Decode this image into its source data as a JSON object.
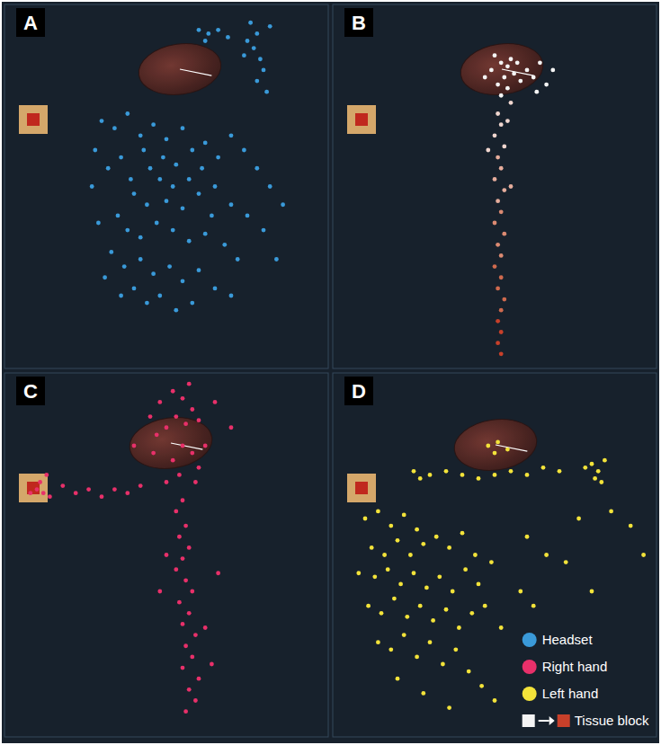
{
  "chart_data": [
    {
      "type": "scatter",
      "title": "A",
      "xlim": [
        0,
        100
      ],
      "ylim": [
        0,
        100
      ],
      "tick_labels": false,
      "x": [
        76,
        78,
        77,
        79,
        80,
        78,
        81,
        75,
        82,
        74,
        60,
        63,
        66,
        69,
        62,
        30,
        34,
        28,
        36,
        32,
        38,
        42,
        46,
        50,
        55,
        58,
        62,
        66,
        70,
        74,
        78,
        82,
        45,
        48,
        52,
        40,
        44,
        50,
        55,
        60,
        65,
        70,
        75,
        80,
        35,
        38,
        42,
        47,
        52,
        57,
        62,
        68,
        72,
        33,
        37,
        42,
        46,
        51,
        55,
        60,
        65,
        70,
        40,
        44,
        48,
        53,
        58,
        36,
        31,
        29,
        27,
        84,
        86,
        64,
        49,
        53,
        43,
        57,
        61,
        39
      ],
      "series": [
        {
          "name": "Headset",
          "color": "#3a9ad9",
          "marker": "circle",
          "values": [
            95,
            92,
            88,
            85,
            82,
            79,
            76,
            90,
            94,
            86,
            93,
            92,
            93,
            91,
            90,
            68,
            66,
            60,
            58,
            55,
            70,
            64,
            67,
            63,
            66,
            60,
            62,
            58,
            64,
            60,
            55,
            50,
            55,
            52,
            50,
            48,
            45,
            46,
            44,
            48,
            50,
            45,
            42,
            38,
            42,
            38,
            36,
            40,
            38,
            35,
            37,
            34,
            30,
            32,
            28,
            30,
            26,
            28,
            24,
            27,
            22,
            20,
            22,
            18,
            20,
            16,
            18,
            20,
            25,
            40,
            50,
            30,
            45,
            42,
            58,
            56,
            60,
            52,
            55,
            52
          ]
        }
      ]
    },
    {
      "type": "scatter",
      "title": "B",
      "xlim": [
        0,
        100
      ],
      "ylim": [
        0,
        100
      ],
      "tick_labels": false,
      "x": [
        50,
        52,
        54,
        55,
        53,
        51,
        56,
        57,
        49,
        54,
        52,
        55,
        58,
        60,
        62,
        64,
        66,
        68,
        63,
        47,
        54,
        48,
        55,
        51,
        52,
        50,
        53,
        51,
        52,
        50,
        53,
        51,
        52,
        50,
        53,
        51,
        52,
        50,
        52,
        51,
        53,
        52,
        51,
        52,
        51,
        52
      ],
      "series": [
        {
          "name": "Tissue block",
          "marker": "circle",
          "values": [
            86,
            84,
            83,
            85,
            80,
            78,
            81,
            84,
            82,
            77,
            75,
            73,
            79,
            82,
            80,
            84,
            78,
            82,
            76,
            80,
            68,
            60,
            50,
            70,
            67,
            64,
            61,
            58,
            55,
            52,
            49,
            46,
            43,
            40,
            37,
            34,
            31,
            28,
            25,
            22,
            19,
            16,
            13,
            10,
            7,
            4
          ],
          "colors": [
            "#f4f4f4",
            "#f4f4f4",
            "#f4f4f4",
            "#f4f4f4",
            "#f4f4f4",
            "#f4f4f4",
            "#f4f4f4",
            "#f4f4f4",
            "#f4f4f4",
            "#f4f4f4",
            "#f4f4f4",
            "#f0d6cf",
            "#f4f4f4",
            "#f4f4f4",
            "#f4f4f4",
            "#f4f4f4",
            "#f4f4f4",
            "#f4f4f4",
            "#f4f4f4",
            "#f4f4f4",
            "#f0d6cf",
            "#f0d6cf",
            "#e6ad9c",
            "#f0d6cf",
            "#f0d6cf",
            "#f0d6cf",
            "#f0d6cf",
            "#e6ad9c",
            "#e6ad9c",
            "#e6ad9c",
            "#e6ad9c",
            "#e6ad9c",
            "#db8a72",
            "#db8a72",
            "#db8a72",
            "#db8a72",
            "#db8a72",
            "#cf6a4e",
            "#cf6a4e",
            "#cf6a4e",
            "#cf6a4e",
            "#cf6a4e",
            "#c8402a",
            "#c8402a",
            "#c8402a",
            "#c8402a"
          ]
        }
      ]
    },
    {
      "type": "scatter",
      "title": "C",
      "xlim": [
        0,
        100
      ],
      "ylim": [
        0,
        100
      ],
      "tick_labels": false,
      "x": [
        48,
        52,
        55,
        58,
        60,
        56,
        53,
        50,
        47,
        55,
        58,
        52,
        60,
        62,
        45,
        57,
        54,
        50,
        59,
        46,
        10,
        12,
        11,
        14,
        18,
        22,
        26,
        30,
        34,
        38,
        42,
        8,
        13,
        55,
        53,
        56,
        54,
        57,
        55,
        53,
        56,
        58,
        54,
        57,
        55,
        59,
        56,
        58,
        55,
        60,
        57,
        59,
        56,
        62,
        50,
        64,
        48,
        66,
        40,
        70,
        65
      ],
      "series": [
        {
          "name": "Right hand",
          "color": "#e8306a",
          "marker": "circle",
          "values": [
            92,
            95,
            93,
            90,
            87,
            86,
            88,
            85,
            83,
            80,
            78,
            76,
            74,
            80,
            88,
            97,
            72,
            70,
            70,
            78,
            68,
            67,
            70,
            66,
            69,
            67,
            68,
            66,
            68,
            67,
            69,
            67,
            72,
            65,
            62,
            58,
            55,
            52,
            49,
            46,
            43,
            40,
            37,
            34,
            31,
            28,
            25,
            22,
            19,
            16,
            13,
            10,
            7,
            30,
            50,
            20,
            40,
            45,
            80,
            85,
            92
          ]
        }
      ]
    },
    {
      "type": "scatter",
      "title": "D",
      "xlim": [
        0,
        100
      ],
      "ylim": [
        0,
        100
      ],
      "tick_labels": false,
      "legend": "lower right",
      "x": [
        25,
        30,
        35,
        40,
        45,
        50,
        55,
        60,
        65,
        70,
        27,
        80,
        82,
        84,
        81,
        78,
        83,
        48,
        51,
        54,
        50,
        10,
        14,
        18,
        22,
        26,
        12,
        16,
        20,
        24,
        28,
        32,
        36,
        40,
        44,
        8,
        13,
        17,
        21,
        25,
        29,
        33,
        37,
        41,
        45,
        49,
        11,
        15,
        19,
        23,
        27,
        31,
        35,
        39,
        43,
        47,
        14,
        18,
        22,
        26,
        30,
        34,
        38,
        42,
        46,
        50,
        20,
        28,
        36,
        52,
        58,
        62,
        60,
        66,
        72,
        76,
        80,
        86,
        92,
        96
      ],
      "series": [
        {
          "name": "Left hand",
          "color": "#f3e33a",
          "marker": "circle",
          "values": [
            73,
            72,
            73,
            72,
            71,
            72,
            73,
            72,
            74,
            73,
            71,
            75,
            73,
            76,
            71,
            74,
            70,
            80,
            81,
            79,
            78,
            60,
            62,
            58,
            61,
            57,
            52,
            50,
            54,
            50,
            53,
            55,
            52,
            56,
            50,
            45,
            44,
            46,
            42,
            45,
            41,
            44,
            40,
            46,
            42,
            48,
            36,
            34,
            38,
            33,
            36,
            32,
            35,
            30,
            34,
            36,
            26,
            24,
            28,
            22,
            26,
            20,
            24,
            18,
            14,
            10,
            16,
            12,
            8,
            30,
            40,
            36,
            55,
            50,
            48,
            60,
            40,
            62,
            58,
            50
          ]
        }
      ]
    }
  ]
}
